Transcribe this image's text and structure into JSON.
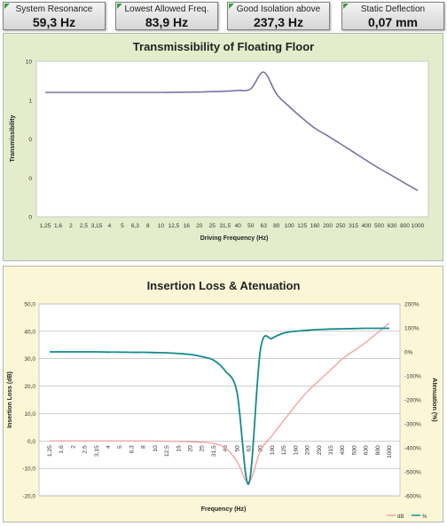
{
  "metrics": [
    {
      "label": "System Resonance",
      "value": "59,3  Hz"
    },
    {
      "label": "Lowest Allowed Freq.",
      "value": "83,9  Hz"
    },
    {
      "label": "Good Isolation above",
      "value": "237,3  Hz"
    },
    {
      "label": "Static Deflection",
      "value": "0,07  mm"
    }
  ],
  "colors": {
    "transmissibility": "#7b70a8",
    "db": "#f5a3a3",
    "percent": "#168a8a",
    "panel1_bg": "#e3edcc",
    "panel2_bg": "#fbf7d6",
    "indicator": "#3a9a3a"
  },
  "chart_data": [
    {
      "type": "line",
      "title": "Transmissibility of Floating Floor",
      "xlabel": "Driving Frequency (Hz)",
      "ylabel": "Transmissibility",
      "y_scale": "log",
      "ylim": [
        0.0001,
        10
      ],
      "yticks": [
        "10",
        "1",
        "0",
        "0",
        "0"
      ],
      "categories": [
        "1,25",
        "1,6",
        "2",
        "2,5",
        "3,15",
        "4",
        "5",
        "6,3",
        "8",
        "10",
        "12,5",
        "16",
        "20",
        "25",
        "31,5",
        "40",
        "50",
        "63",
        "80",
        "100",
        "125",
        "160",
        "200",
        "250",
        "315",
        "400",
        "500",
        "630",
        "800",
        "1000"
      ],
      "series": [
        {
          "values": [
            1.0,
            1.0,
            1.0,
            1.0,
            1.0,
            1.0,
            1.0,
            1.0,
            1.0,
            1.0,
            1.01,
            1.02,
            1.03,
            1.06,
            1.09,
            1.16,
            1.3,
            4.5,
            0.9,
            0.35,
            0.15,
            0.07,
            0.04,
            0.022,
            0.012,
            0.0065,
            0.0036,
            0.0021,
            0.0012,
            0.0007
          ]
        }
      ],
      "grid": false
    },
    {
      "type": "line",
      "title": "Insertion Loss & Atenuation",
      "xlabel": "Frequency (Hz)",
      "ylabel": "Insertion Loss (dB)",
      "y2label": "Atenuation (%)",
      "ylim": [
        -20,
        50
      ],
      "y2lim": [
        -600,
        200
      ],
      "yticks": [
        "50,0",
        "40,0",
        "30,0",
        "20,0",
        "10,0",
        "0,0",
        "-10,0",
        "-20,0"
      ],
      "y2ticks": [
        "200%",
        "100%",
        "0%",
        "-100%",
        "-200%",
        "-300%",
        "-400%",
        "-500%",
        "-600%"
      ],
      "categories": [
        "1,25",
        "1,6",
        "2",
        "2,5",
        "3,15",
        "4",
        "5",
        "6,3",
        "8",
        "10",
        "12,5",
        "16",
        "20",
        "25",
        "31,5",
        "40",
        "50",
        "63",
        "80",
        "100",
        "125",
        "160",
        "200",
        "250",
        "315",
        "400",
        "500",
        "630",
        "800",
        "1000"
      ],
      "legend": [
        "dB",
        "%"
      ],
      "legend_position": "bottom-right",
      "series": [
        {
          "name": "dB",
          "axis": "left",
          "values": [
            0,
            0,
            0,
            0,
            0,
            0,
            0,
            0,
            0,
            -0.05,
            -0.1,
            -0.15,
            -0.3,
            -0.5,
            -0.9,
            -2.5,
            -7.5,
            -15,
            -3.5,
            2,
            7.5,
            13,
            18,
            22,
            26,
            30,
            33,
            36,
            39.5,
            43
          ]
        },
        {
          "name": "%",
          "axis": "right",
          "values": [
            0,
            0,
            0,
            0,
            0,
            -1,
            -1,
            -2,
            -2,
            -3,
            -4,
            -7,
            -11,
            -20,
            -35,
            -80,
            -170,
            -550,
            10,
            56,
            78,
            86,
            90,
            93,
            95,
            96,
            97,
            98,
            98,
            98
          ]
        }
      ],
      "grid": true
    }
  ]
}
